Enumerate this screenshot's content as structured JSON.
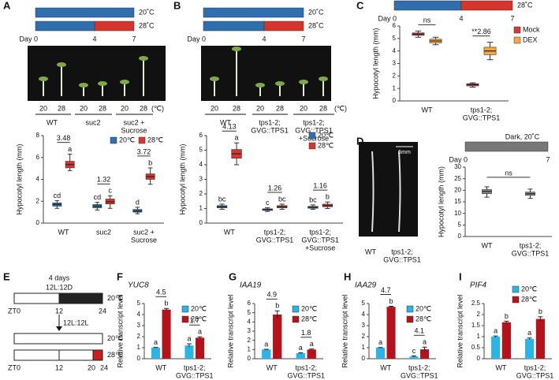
{
  "chart_data": [
    {
      "type": "box",
      "panel": "A",
      "ylabel": "Hypocotyl length (mm)",
      "categories": [
        [
          "WT"
        ],
        [
          "suc2"
        ],
        [
          "suc2 +",
          "Sucrose"
        ]
      ],
      "ylim": [
        0,
        8
      ],
      "yticks": [
        0,
        2,
        4,
        6,
        8
      ],
      "comparisons": [
        "3.48",
        "1.32",
        "3.72"
      ],
      "series": [
        {
          "name": "20℃",
          "color": "#2f6fb0",
          "values": [
            [
              1.35,
              1.55,
              1.7,
              1.85,
              2.05
            ],
            [
              1.2,
              1.4,
              1.55,
              1.7,
              1.9
            ],
            [
              0.85,
              1.0,
              1.1,
              1.25,
              1.45
            ]
          ],
          "letters": [
            "cd",
            "cd",
            "d"
          ]
        },
        {
          "name": "28℃",
          "color": "#d8342c",
          "values": [
            [
              4.8,
              5.05,
              5.35,
              5.65,
              6.3
            ],
            [
              1.35,
              1.75,
              1.95,
              2.2,
              2.5
            ],
            [
              3.55,
              4.0,
              4.25,
              4.5,
              5.05
            ]
          ],
          "letters": [
            "a",
            "c",
            "b"
          ]
        }
      ]
    },
    {
      "type": "box",
      "panel": "B",
      "ylabel": "Hypocotyl length (mm)",
      "categories": [
        [
          "WT"
        ],
        [
          "tps1-2;",
          "GVG::TPS1"
        ],
        [
          "tps1-2;",
          "GVG::TPS1",
          "+Sucrose"
        ]
      ],
      "ylim": [
        0,
        6
      ],
      "yticks": [
        0,
        1,
        2,
        3,
        4,
        5,
        6
      ],
      "comparisons": [
        "4.13",
        "1.26",
        "1.16"
      ],
      "series": [
        {
          "name": "20℃",
          "color": "#2f6fb0",
          "values": [
            [
              0.95,
              1.05,
              1.12,
              1.2,
              1.3
            ],
            [
              0.8,
              0.87,
              0.92,
              0.98,
              1.05
            ],
            [
              0.95,
              1.02,
              1.08,
              1.15,
              1.25
            ]
          ],
          "letters": [
            "bc",
            "c",
            "bc"
          ]
        },
        {
          "name": "28℃",
          "color": "#d8342c",
          "values": [
            [
              4.0,
              4.45,
              4.75,
              5.05,
              5.5
            ],
            [
              0.95,
              1.05,
              1.12,
              1.2,
              1.3
            ],
            [
              1.0,
              1.12,
              1.2,
              1.3,
              1.45
            ]
          ],
          "letters": [
            "a",
            "bc",
            "b"
          ]
        }
      ]
    },
    {
      "type": "box",
      "panel": "C",
      "ylabel": "Hypocotyl length (mm)",
      "categories": [
        [
          "WT"
        ],
        [
          "tps1-2;",
          "GVG::TPS1"
        ]
      ],
      "ylim": [
        0,
        6
      ],
      "yticks": [
        0,
        1,
        2,
        3,
        4,
        5,
        6
      ],
      "comparisons": [
        "ns",
        "**2.86"
      ],
      "series": [
        {
          "name": "Mock",
          "color": "#d73a3a",
          "values": [
            [
              5.1,
              5.25,
              5.35,
              5.45,
              5.6
            ],
            [
              1.1,
              1.2,
              1.3,
              1.38,
              1.45
            ]
          ]
        },
        {
          "name": "DEX",
          "color": "#f5a742",
          "values": [
            [
              4.5,
              4.65,
              4.8,
              4.95,
              5.1
            ],
            [
              3.3,
              3.7,
              4.0,
              4.3,
              4.7
            ]
          ]
        }
      ]
    },
    {
      "type": "box",
      "panel": "D",
      "ylabel": "Hypocotyl length (mm)",
      "categories": [
        [
          "WT"
        ],
        [
          "tps1-2;",
          "GVG::TPS1"
        ]
      ],
      "ylim": [
        0,
        30
      ],
      "yticks": [
        0,
        5,
        10,
        15,
        20,
        25,
        30
      ],
      "comparison": "ns",
      "series": [
        {
          "color": "#8c8c8c",
          "values": [
            [
              17,
              18.5,
              19.5,
              20.3,
              21.5
            ],
            [
              16.5,
              17.8,
              18.5,
              19.2,
              20.5
            ]
          ]
        }
      ]
    },
    {
      "type": "bar",
      "panel": "F",
      "title": "YUC8",
      "ylabel": "Relative transcript level",
      "categories": [
        [
          "WT"
        ],
        [
          "tps1-2;",
          "GVG::TPS1"
        ]
      ],
      "ylim": [
        0,
        5
      ],
      "yticks": [
        0,
        1,
        2,
        3,
        4,
        5
      ],
      "comparisons": [
        "4.5",
        "1.7"
      ],
      "series": [
        {
          "name": "20℃",
          "color": "#2bb5e6",
          "values": [
            1,
            1.2
          ],
          "errors": [
            0.03,
            0.15
          ],
          "letters": [
            "a",
            "a"
          ]
        },
        {
          "name": "28℃",
          "color": "#b5121b",
          "values": [
            4.45,
            1.9
          ],
          "errors": [
            0.1,
            0.08
          ],
          "letters": [
            "b",
            "a"
          ]
        }
      ]
    },
    {
      "type": "bar",
      "panel": "G",
      "title": "IAA19",
      "ylabel": "Relative transcript level",
      "categories": [
        [
          "WT"
        ],
        [
          "tps1-2;",
          "GVG::TPS1"
        ]
      ],
      "ylim": [
        0,
        6
      ],
      "yticks": [
        0,
        1,
        2,
        3,
        4,
        5,
        6
      ],
      "comparisons": [
        "4.9",
        "1.8"
      ],
      "series": [
        {
          "name": "20℃",
          "color": "#2bb5e6",
          "values": [
            1,
            0.6
          ],
          "errors": [
            0.03,
            0.05
          ],
          "letters": [
            "a",
            "a"
          ]
        },
        {
          "name": "28℃",
          "color": "#b5121b",
          "values": [
            4.8,
            1.0
          ],
          "errors": [
            0.4,
            0.05
          ],
          "letters": [
            "b",
            "a"
          ]
        }
      ]
    },
    {
      "type": "bar",
      "panel": "H",
      "title": "IAA29",
      "ylabel": "Relative transcript level",
      "categories": [
        [
          "WT"
        ],
        [
          "tps1-2;",
          "GVG::TPS1"
        ]
      ],
      "ylim": [
        0,
        5
      ],
      "yticks": [
        0,
        1,
        2,
        3,
        4,
        5
      ],
      "comparisons": [
        "4.7",
        "4.1"
      ],
      "series": [
        {
          "name": "20℃",
          "color": "#2bb5e6",
          "values": [
            1,
            0.2
          ],
          "errors": [
            0.02,
            0.05
          ],
          "letters": [
            "a",
            "c"
          ]
        },
        {
          "name": "28℃",
          "color": "#b5121b",
          "values": [
            4.7,
            0.85
          ],
          "errors": [
            0.05,
            0.2
          ],
          "letters": [
            "b",
            "a"
          ]
        }
      ]
    },
    {
      "type": "bar",
      "panel": "I",
      "title": "PIF4",
      "ylabel": "Relative transcript level",
      "categories": [
        [
          "WT"
        ],
        [
          "tps1-2;",
          "GVG::TPS1"
        ]
      ],
      "ylim": [
        0,
        2.5
      ],
      "yticks": [
        0,
        0.5,
        1,
        1.5,
        2,
        2.5
      ],
      "series": [
        {
          "name": "20℃",
          "color": "#2bb5e6",
          "values": [
            1,
            0.9
          ],
          "errors": [
            0.03,
            0.04
          ],
          "letters": [
            "a",
            "a"
          ]
        },
        {
          "name": "28℃",
          "color": "#b5121b",
          "values": [
            1.65,
            1.8
          ],
          "errors": [
            0.05,
            0.1
          ],
          "letters": [
            "b",
            "b"
          ]
        }
      ]
    }
  ],
  "timelines": [
    {
      "temps": [
        "20˚C",
        "28˚C"
      ],
      "days": [
        "Day 0",
        "4",
        "7"
      ]
    },
    {
      "temps": [
        "20˚C",
        "28˚C"
      ],
      "days": [
        "Day 0",
        "4",
        "7"
      ]
    },
    {
      "temps": [
        "28˚C"
      ],
      "days": [
        "Day 0",
        "4",
        "7"
      ]
    },
    {
      "temps": [
        "Dark, 20˚C"
      ],
      "days": [
        "Day 0",
        "7"
      ]
    }
  ],
  "photos": [
    {
      "temps": [
        "20",
        "28",
        "20",
        "28",
        "20",
        "28"
      ],
      "unit": "(℃)",
      "groups": [
        [
          "WT"
        ],
        [
          "suc2"
        ],
        [
          "suc2 +",
          "Sucrose"
        ]
      ]
    },
    {
      "temps": [
        "20",
        "28",
        "20",
        "28",
        "20",
        "28"
      ],
      "unit": "(℃)",
      "groups": [
        [
          "WT"
        ],
        [
          "tps1-2;",
          "GVG::TPS1"
        ],
        [
          "tps1-2;",
          "GVG::TPS1",
          "+Sucrose"
        ]
      ]
    },
    {
      "scale": "5mm",
      "groups": [
        [
          "WT"
        ],
        [
          "tps1-2;",
          "GVG::TPS1"
        ]
      ]
    }
  ],
  "diagram": {
    "panel": "E",
    "duration": "4 days",
    "photoperiod_1": "12L:12D",
    "temp_1": "20℃",
    "zt_1": [
      "ZT0",
      "12",
      "24"
    ],
    "photoperiod_2": "12L:12L",
    "temp_2": "20℃",
    "temp_3": "28℃",
    "zt_2": [
      "ZT0",
      "12",
      "20",
      "24"
    ]
  }
}
